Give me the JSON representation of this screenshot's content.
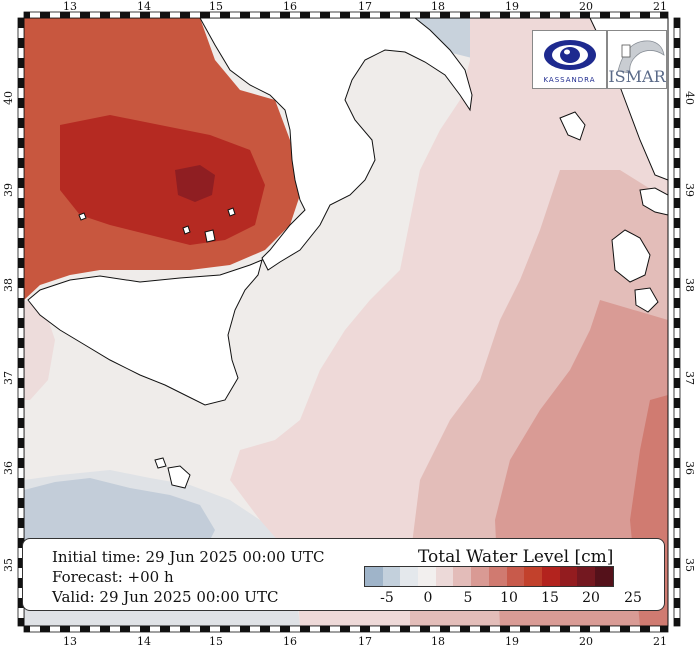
{
  "map": {
    "lon_ticks": [
      "13",
      "14",
      "15",
      "16",
      "17",
      "18",
      "19",
      "20",
      "21"
    ],
    "lat_ticks": [
      "35",
      "36",
      "37",
      "38",
      "39",
      "40"
    ]
  },
  "info": {
    "initial_time": "Initial time: 29 Jun 2025 00:00 UTC",
    "forecast": "Forecast: +00 h",
    "valid": "Valid: 29 Jun 2025 00:00 UTC"
  },
  "legend": {
    "title": "Total Water Level [cm]",
    "labels": [
      "-5",
      "0",
      "5",
      "10",
      "15",
      "20",
      "25"
    ],
    "colors": [
      "#9fb4c9",
      "#c3d0dc",
      "#e4e8ec",
      "#f2efee",
      "#ecd9d8",
      "#e3bcb9",
      "#d99a94",
      "#d07a70",
      "#c85a4b",
      "#c2412c",
      "#b3231e",
      "#931c1f",
      "#741820",
      "#54111a"
    ]
  },
  "logos": {
    "left_name": "kassandra-logo",
    "left_text": "KASSANDRA",
    "right_text": "ISMAR"
  }
}
